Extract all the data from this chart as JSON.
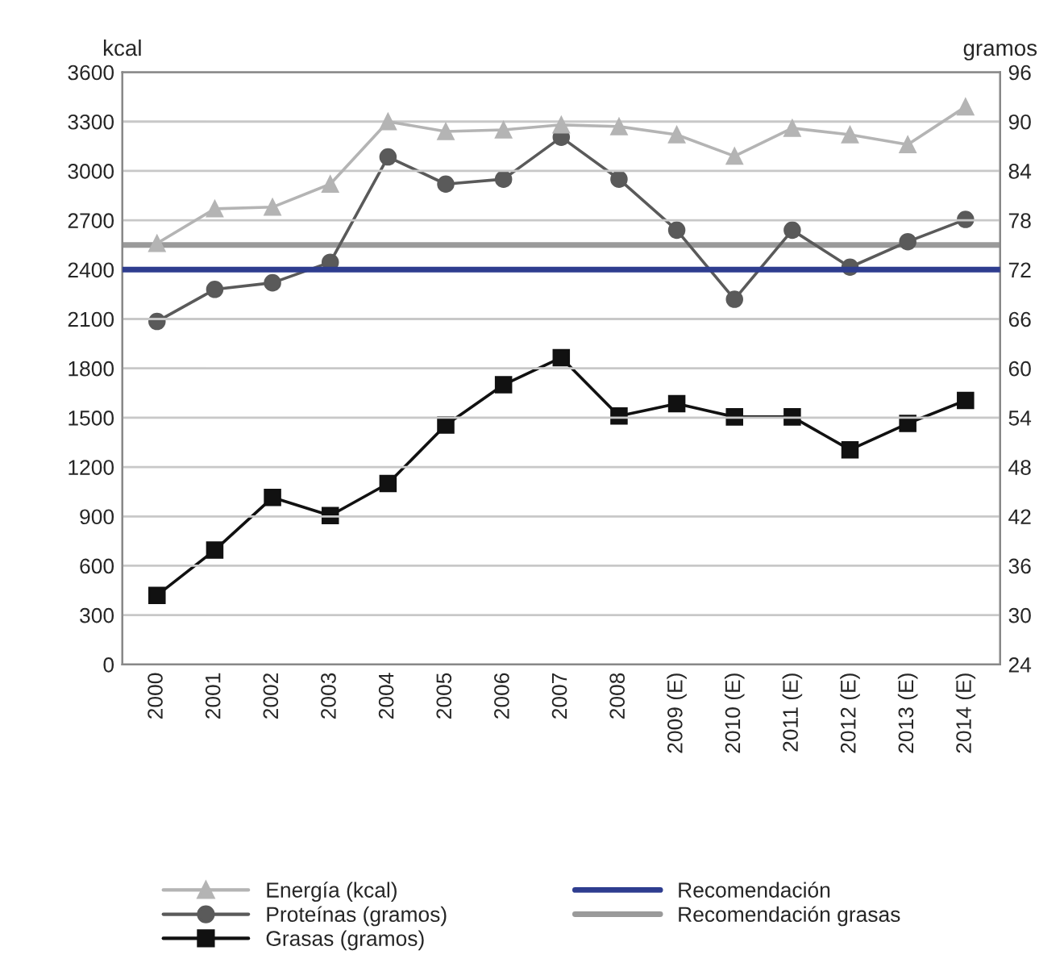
{
  "chart_data": {
    "type": "line",
    "ylabel": "kcal",
    "y2label": "gramos",
    "categories": [
      "2000",
      "2001",
      "2002",
      "2003",
      "2004",
      "2005",
      "2006",
      "2007",
      "2008",
      "2009 (E)",
      "2010 (E)",
      "2011 (E)",
      "2012 (E)",
      "2013 (E)",
      "2014 (E)"
    ],
    "series": [
      {
        "name": "Energía (kcal)",
        "color": "#b4b4b4",
        "marker": "triangle",
        "values": [
          2560,
          2770,
          2780,
          2920,
          3300,
          3240,
          3250,
          3280,
          3270,
          3220,
          3090,
          3260,
          3220,
          3160,
          3390
        ]
      },
      {
        "name": "Proteínas (gramos)",
        "color": "#5a5a5a",
        "marker": "circle",
        "axis": "y2",
        "values": [
          65.7,
          69.6,
          70.4,
          72.9,
          85.7,
          82.4,
          83.0,
          88.1,
          83.0,
          76.8,
          68.4,
          76.8,
          72.3,
          75.4,
          78.1
        ]
      },
      {
        "name": "Grasas (gramos)",
        "color": "#111111",
        "marker": "square",
        "axis": "y2",
        "values": [
          32.4,
          37.9,
          44.3,
          42.1,
          46.0,
          53.1,
          58.0,
          61.3,
          54.2,
          55.7,
          54.1,
          54.1,
          50.1,
          53.3,
          56.1
        ]
      }
    ],
    "ref_lines": [
      {
        "axis": "y",
        "value": 2400,
        "label": "Recomendación",
        "color": "#2e3d8f"
      },
      {
        "axis": "y2",
        "value": 75,
        "label": "Recomendación grasas",
        "color": "#9a9a9a"
      }
    ],
    "ylim": [
      0,
      3600
    ],
    "yticks": [
      0,
      300,
      600,
      900,
      1200,
      1500,
      1800,
      2100,
      2400,
      2700,
      3000,
      3300,
      3600
    ],
    "y2lim": [
      24,
      96
    ],
    "y2ticks": [
      24,
      30,
      36,
      42,
      48,
      54,
      60,
      66,
      72,
      78,
      84,
      90,
      96
    ],
    "grid": "y",
    "legend": "bottom"
  }
}
